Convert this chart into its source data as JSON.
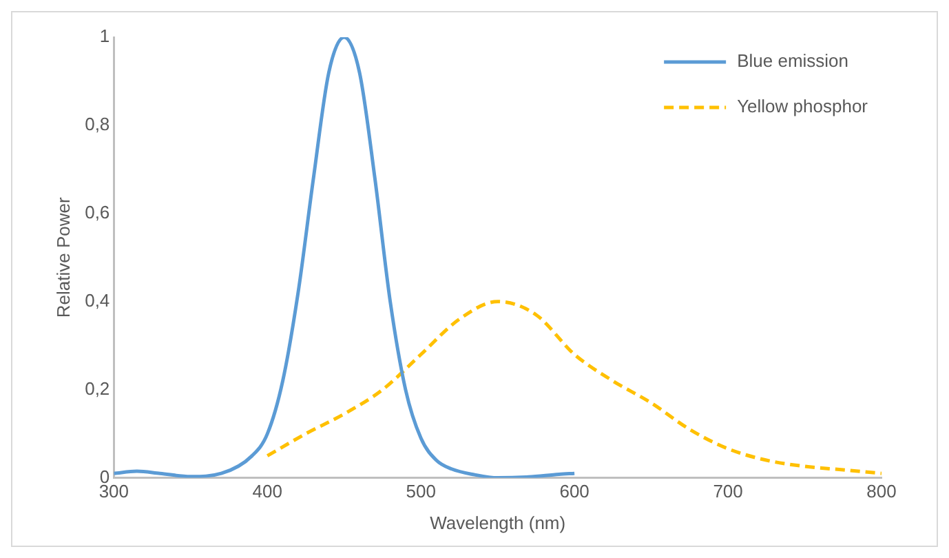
{
  "chart_data": {
    "type": "line",
    "xlabel": "Wavelength (nm)",
    "ylabel": "Relative Power",
    "xlim": [
      300,
      800
    ],
    "xticks": [
      300,
      400,
      500,
      600,
      700,
      800
    ],
    "ylim": [
      0,
      1
    ],
    "yticks": [
      0,
      {
        "value": 0.2,
        "label": "0,2"
      },
      {
        "value": 0.4,
        "label": "0,4"
      },
      {
        "value": 0.6,
        "label": "0,6"
      },
      {
        "value": 0.8,
        "label": "0,8"
      },
      1
    ],
    "grid": false,
    "legend": "top right",
    "marker": "none",
    "series": [
      {
        "name": "Blue emission",
        "color": "#5b9bd5",
        "line_style": "solid",
        "x": [
          300,
          315,
          330,
          350,
          370,
          390,
          400,
          410,
          420,
          430,
          440,
          450,
          460,
          470,
          480,
          490,
          500,
          510,
          520,
          535,
          550,
          570,
          590,
          600
        ],
        "values": [
          0.01,
          0.015,
          0.01,
          0.003,
          0.01,
          0.05,
          0.1,
          0.22,
          0.42,
          0.68,
          0.92,
          1,
          0.92,
          0.68,
          0.4,
          0.2,
          0.09,
          0.04,
          0.02,
          0.007,
          0,
          0.002,
          0.008,
          0.01
        ]
      },
      {
        "name": "Yellow phosphor",
        "color": "#ffc000",
        "line_style": "dashed",
        "x": [
          400,
          425,
          450,
          475,
          500,
          525,
          550,
          575,
          600,
          625,
          650,
          675,
          700,
          725,
          750,
          775,
          800
        ],
        "values": [
          0.05,
          0.1,
          0.145,
          0.2,
          0.28,
          0.36,
          0.4,
          0.37,
          0.28,
          0.22,
          0.17,
          0.11,
          0.066,
          0.04,
          0.026,
          0.018,
          0.01
        ]
      }
    ]
  }
}
